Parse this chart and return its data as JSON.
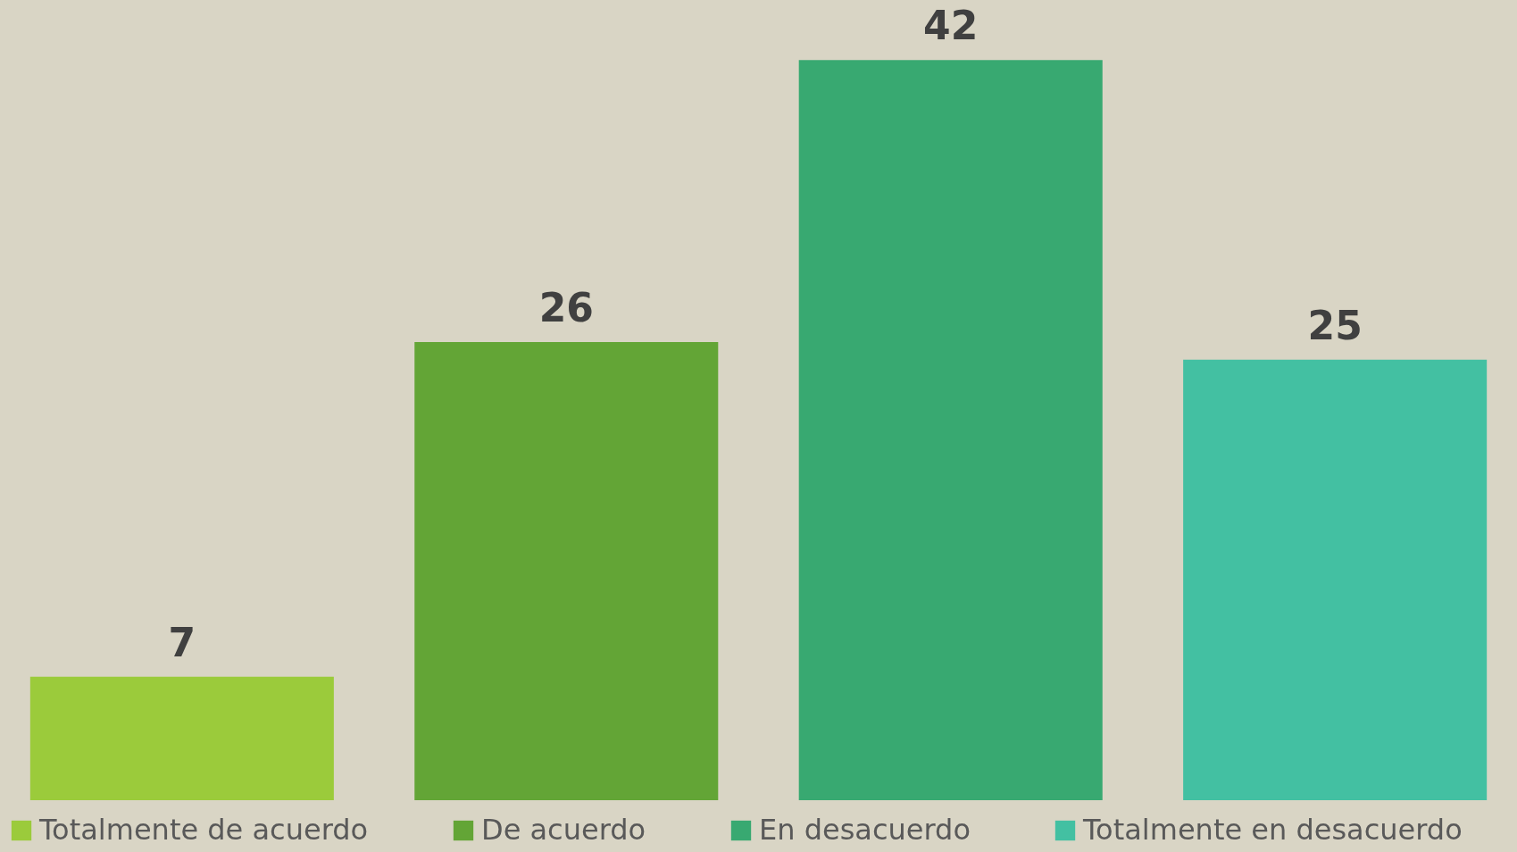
{
  "chart_data": {
    "type": "bar",
    "categories": [
      null,
      null,
      null,
      null
    ],
    "series": [
      {
        "name": "Totalmente de acuerdo",
        "color": "#9bcb3b",
        "values": [
          7,
          null,
          null,
          null
        ]
      },
      {
        "name": "De acuerdo",
        "color": "#63a536",
        "values": [
          null,
          26,
          null,
          null
        ]
      },
      {
        "name": "En desacuerdo",
        "color": "#38a971",
        "values": [
          null,
          null,
          42,
          null
        ]
      },
      {
        "name": "Totalmente en desacuerdo",
        "color": "#43c0a2",
        "values": [
          null,
          null,
          null,
          25
        ]
      }
    ],
    "stacked": true,
    "data_labels": true,
    "legend": "bottom",
    "tick_labels": false,
    "grid": false
  }
}
